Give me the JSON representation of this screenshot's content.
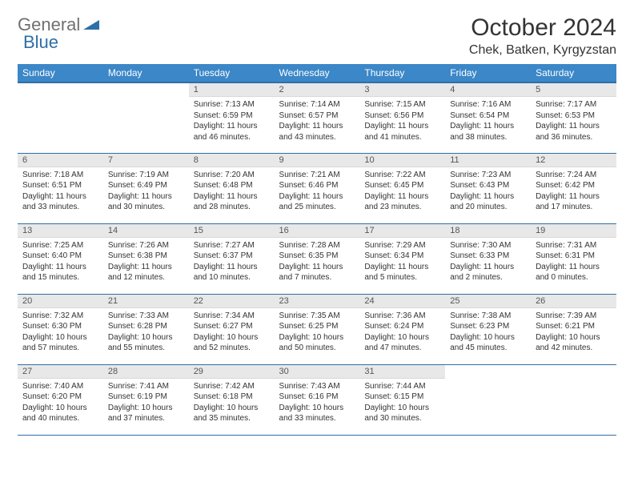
{
  "brand": {
    "part1": "General",
    "part2": "Blue"
  },
  "title": {
    "month": "October 2024",
    "location": "Chek, Batken, Kyrgyzstan"
  },
  "colors": {
    "header_bg": "#3b87c8",
    "header_border": "#2f6fa7",
    "daynum_bg": "#e8e8e8",
    "text": "#333333"
  },
  "weekdays": [
    "Sunday",
    "Monday",
    "Tuesday",
    "Wednesday",
    "Thursday",
    "Friday",
    "Saturday"
  ],
  "weeks": [
    [
      null,
      null,
      {
        "n": "1",
        "sr": "Sunrise: 7:13 AM",
        "ss": "Sunset: 6:59 PM",
        "dl": "Daylight: 11 hours and 46 minutes."
      },
      {
        "n": "2",
        "sr": "Sunrise: 7:14 AM",
        "ss": "Sunset: 6:57 PM",
        "dl": "Daylight: 11 hours and 43 minutes."
      },
      {
        "n": "3",
        "sr": "Sunrise: 7:15 AM",
        "ss": "Sunset: 6:56 PM",
        "dl": "Daylight: 11 hours and 41 minutes."
      },
      {
        "n": "4",
        "sr": "Sunrise: 7:16 AM",
        "ss": "Sunset: 6:54 PM",
        "dl": "Daylight: 11 hours and 38 minutes."
      },
      {
        "n": "5",
        "sr": "Sunrise: 7:17 AM",
        "ss": "Sunset: 6:53 PM",
        "dl": "Daylight: 11 hours and 36 minutes."
      }
    ],
    [
      {
        "n": "6",
        "sr": "Sunrise: 7:18 AM",
        "ss": "Sunset: 6:51 PM",
        "dl": "Daylight: 11 hours and 33 minutes."
      },
      {
        "n": "7",
        "sr": "Sunrise: 7:19 AM",
        "ss": "Sunset: 6:49 PM",
        "dl": "Daylight: 11 hours and 30 minutes."
      },
      {
        "n": "8",
        "sr": "Sunrise: 7:20 AM",
        "ss": "Sunset: 6:48 PM",
        "dl": "Daylight: 11 hours and 28 minutes."
      },
      {
        "n": "9",
        "sr": "Sunrise: 7:21 AM",
        "ss": "Sunset: 6:46 PM",
        "dl": "Daylight: 11 hours and 25 minutes."
      },
      {
        "n": "10",
        "sr": "Sunrise: 7:22 AM",
        "ss": "Sunset: 6:45 PM",
        "dl": "Daylight: 11 hours and 23 minutes."
      },
      {
        "n": "11",
        "sr": "Sunrise: 7:23 AM",
        "ss": "Sunset: 6:43 PM",
        "dl": "Daylight: 11 hours and 20 minutes."
      },
      {
        "n": "12",
        "sr": "Sunrise: 7:24 AM",
        "ss": "Sunset: 6:42 PM",
        "dl": "Daylight: 11 hours and 17 minutes."
      }
    ],
    [
      {
        "n": "13",
        "sr": "Sunrise: 7:25 AM",
        "ss": "Sunset: 6:40 PM",
        "dl": "Daylight: 11 hours and 15 minutes."
      },
      {
        "n": "14",
        "sr": "Sunrise: 7:26 AM",
        "ss": "Sunset: 6:38 PM",
        "dl": "Daylight: 11 hours and 12 minutes."
      },
      {
        "n": "15",
        "sr": "Sunrise: 7:27 AM",
        "ss": "Sunset: 6:37 PM",
        "dl": "Daylight: 11 hours and 10 minutes."
      },
      {
        "n": "16",
        "sr": "Sunrise: 7:28 AM",
        "ss": "Sunset: 6:35 PM",
        "dl": "Daylight: 11 hours and 7 minutes."
      },
      {
        "n": "17",
        "sr": "Sunrise: 7:29 AM",
        "ss": "Sunset: 6:34 PM",
        "dl": "Daylight: 11 hours and 5 minutes."
      },
      {
        "n": "18",
        "sr": "Sunrise: 7:30 AM",
        "ss": "Sunset: 6:33 PM",
        "dl": "Daylight: 11 hours and 2 minutes."
      },
      {
        "n": "19",
        "sr": "Sunrise: 7:31 AM",
        "ss": "Sunset: 6:31 PM",
        "dl": "Daylight: 11 hours and 0 minutes."
      }
    ],
    [
      {
        "n": "20",
        "sr": "Sunrise: 7:32 AM",
        "ss": "Sunset: 6:30 PM",
        "dl": "Daylight: 10 hours and 57 minutes."
      },
      {
        "n": "21",
        "sr": "Sunrise: 7:33 AM",
        "ss": "Sunset: 6:28 PM",
        "dl": "Daylight: 10 hours and 55 minutes."
      },
      {
        "n": "22",
        "sr": "Sunrise: 7:34 AM",
        "ss": "Sunset: 6:27 PM",
        "dl": "Daylight: 10 hours and 52 minutes."
      },
      {
        "n": "23",
        "sr": "Sunrise: 7:35 AM",
        "ss": "Sunset: 6:25 PM",
        "dl": "Daylight: 10 hours and 50 minutes."
      },
      {
        "n": "24",
        "sr": "Sunrise: 7:36 AM",
        "ss": "Sunset: 6:24 PM",
        "dl": "Daylight: 10 hours and 47 minutes."
      },
      {
        "n": "25",
        "sr": "Sunrise: 7:38 AM",
        "ss": "Sunset: 6:23 PM",
        "dl": "Daylight: 10 hours and 45 minutes."
      },
      {
        "n": "26",
        "sr": "Sunrise: 7:39 AM",
        "ss": "Sunset: 6:21 PM",
        "dl": "Daylight: 10 hours and 42 minutes."
      }
    ],
    [
      {
        "n": "27",
        "sr": "Sunrise: 7:40 AM",
        "ss": "Sunset: 6:20 PM",
        "dl": "Daylight: 10 hours and 40 minutes."
      },
      {
        "n": "28",
        "sr": "Sunrise: 7:41 AM",
        "ss": "Sunset: 6:19 PM",
        "dl": "Daylight: 10 hours and 37 minutes."
      },
      {
        "n": "29",
        "sr": "Sunrise: 7:42 AM",
        "ss": "Sunset: 6:18 PM",
        "dl": "Daylight: 10 hours and 35 minutes."
      },
      {
        "n": "30",
        "sr": "Sunrise: 7:43 AM",
        "ss": "Sunset: 6:16 PM",
        "dl": "Daylight: 10 hours and 33 minutes."
      },
      {
        "n": "31",
        "sr": "Sunrise: 7:44 AM",
        "ss": "Sunset: 6:15 PM",
        "dl": "Daylight: 10 hours and 30 minutes."
      },
      null,
      null
    ]
  ]
}
